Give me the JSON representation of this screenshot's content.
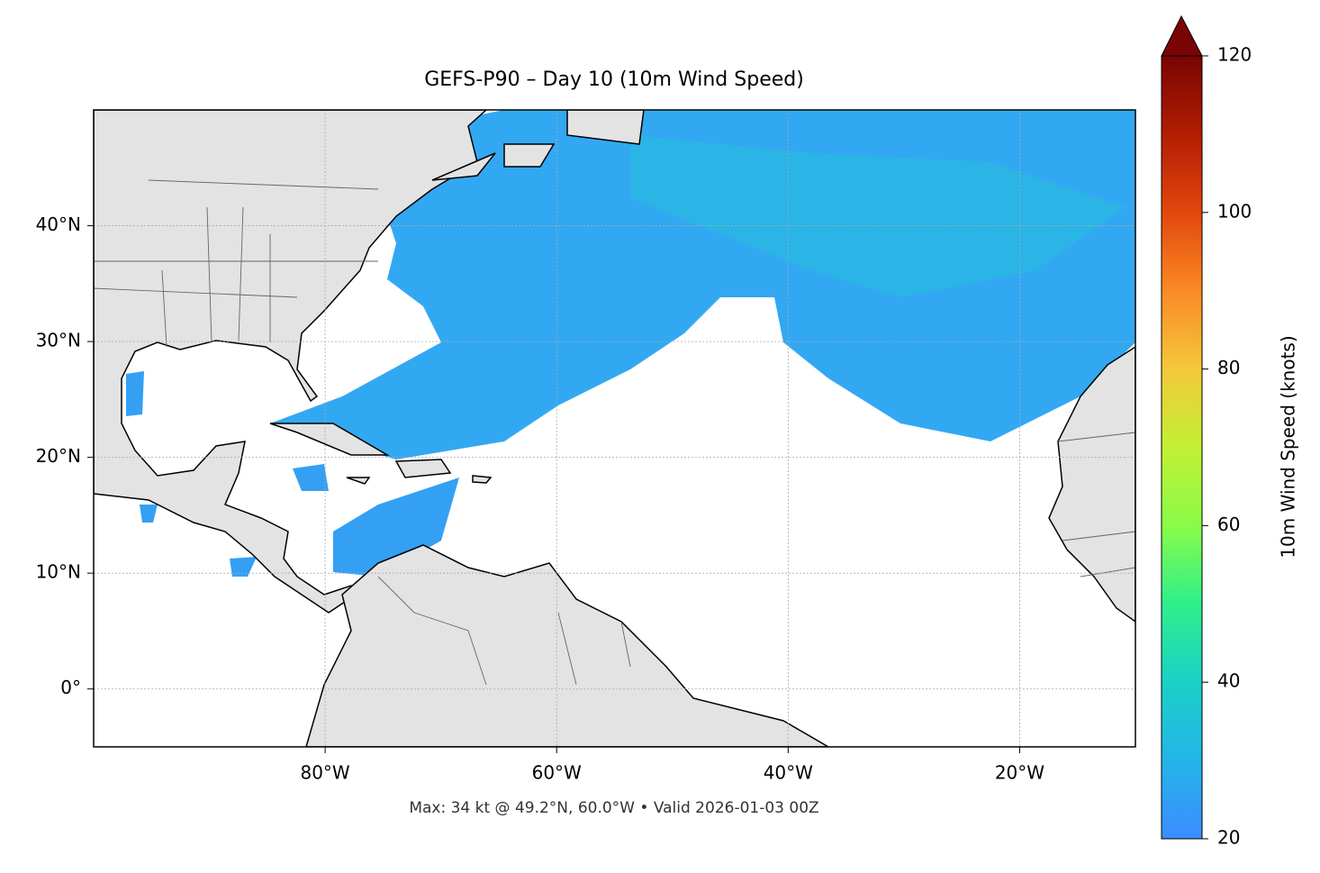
{
  "chart_data": {
    "type": "map",
    "title": "GEFS-P90 – Day 10 (10m Wind Speed)",
    "footer": "Max: 34 kt @ 49.2°N, 60.0°W • Valid 2026-01-03 00Z",
    "xlim": [
      -100,
      -10
    ],
    "ylim": [
      -5,
      50
    ],
    "xticks": [
      {
        "value": -80,
        "label": "80°W"
      },
      {
        "value": -60,
        "label": "60°W"
      },
      {
        "value": -40,
        "label": "40°W"
      },
      {
        "value": -20,
        "label": "20°W"
      }
    ],
    "yticks": [
      {
        "value": 0,
        "label": "0°"
      },
      {
        "value": 10,
        "label": "10°N"
      },
      {
        "value": 20,
        "label": "20°N"
      },
      {
        "value": 30,
        "label": "30°N"
      },
      {
        "value": 40,
        "label": "40°N"
      }
    ],
    "grid": true,
    "colorbar": {
      "label": "10m Wind Speed (knots)",
      "lim": [
        20,
        120
      ],
      "ticks": [
        20,
        40,
        60,
        80,
        100,
        120
      ]
    }
  }
}
